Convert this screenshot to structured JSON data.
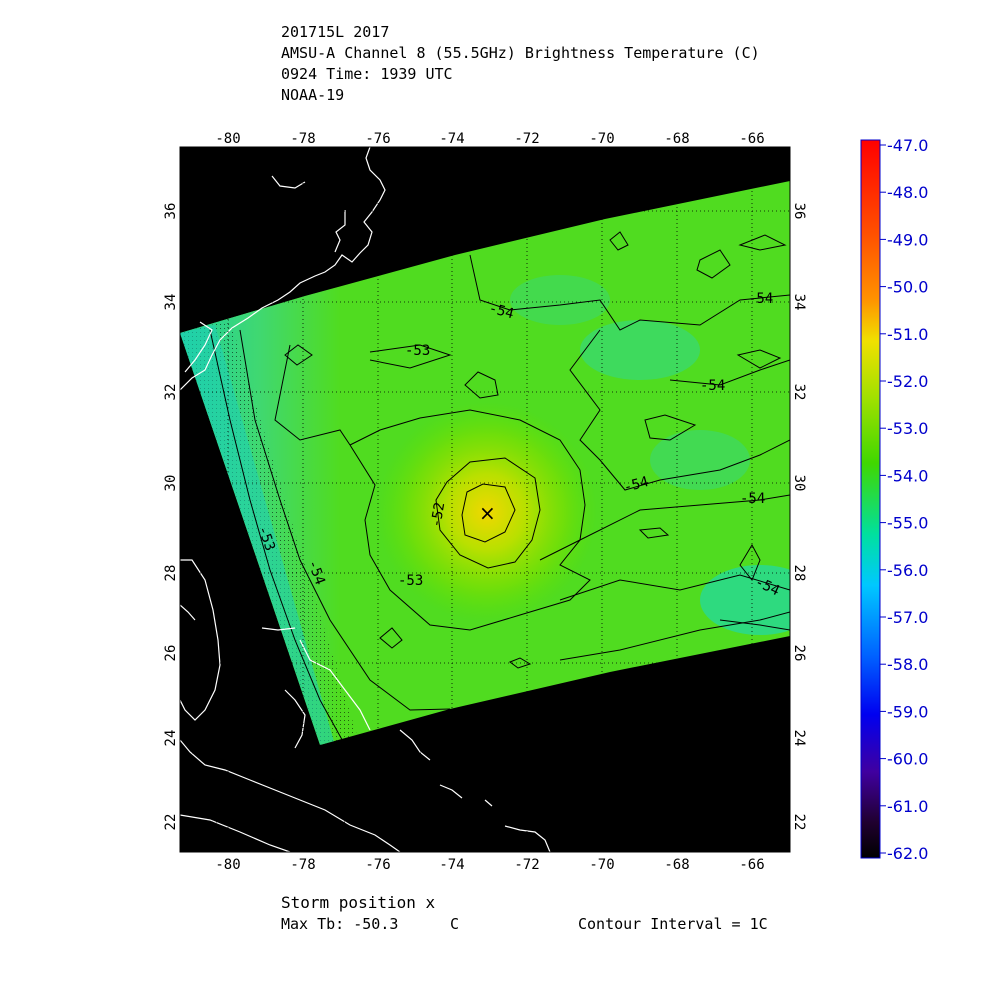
{
  "header": {
    "line1": "201715L 2017",
    "line2": "AMSU-A Channel 8 (55.5GHz) Brightness Temperature (C)",
    "line3": "0924 Time: 1939 UTC",
    "line4": "NOAA-19"
  },
  "map": {
    "lon_ticks": [
      "-80",
      "-78",
      "-76",
      "-74",
      "-72",
      "-70",
      "-68",
      "-66"
    ],
    "lat_ticks": [
      "36",
      "34",
      "32",
      "30",
      "28",
      "26",
      "24",
      "22"
    ],
    "contour_labels": [
      "-54",
      "-53",
      "-54",
      "-54",
      "-54",
      "-52",
      "-53",
      "-53",
      "-54",
      "-54",
      "-54"
    ],
    "storm_marker_symbol": "×",
    "colors": {
      "background": "#000000",
      "coastline": "#ffffff",
      "contour": "#000000"
    }
  },
  "colorbar": {
    "labels": [
      "-47.0",
      "-48.0",
      "-49.0",
      "-50.0",
      "-51.0",
      "-52.0",
      "-53.0",
      "-54.0",
      "-55.0",
      "-56.0",
      "-57.0",
      "-58.0",
      "-59.0",
      "-60.0",
      "-61.0",
      "-62.0"
    ],
    "label_color": "#0000cc"
  },
  "footer": {
    "storm_position": "Storm position x",
    "max_tb": "Max Tb: -50.3",
    "max_tb_unit": "C",
    "contour_interval": "Contour Interval = 1C"
  }
}
